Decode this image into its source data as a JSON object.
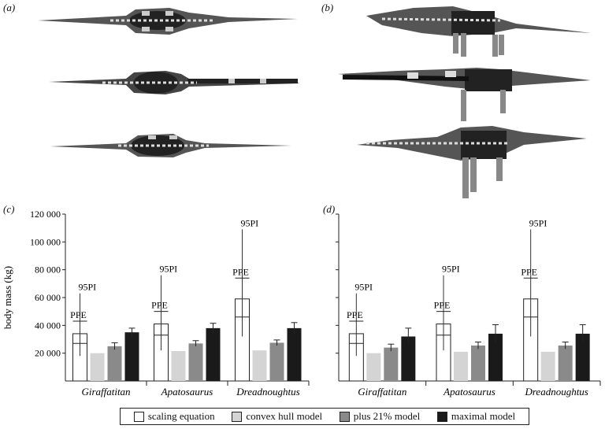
{
  "panels": {
    "a": "(a)",
    "b": "(b)",
    "c": "(c)",
    "d": "(d)"
  },
  "models": {
    "a": [
      "top-view-model-1",
      "top-view-model-2",
      "top-view-model-3"
    ],
    "b": [
      "side-view-model-1",
      "side-view-model-2",
      "side-view-model-3"
    ]
  },
  "annotations": {
    "ppe": "PPE",
    "pi": "95PI"
  },
  "legend": [
    {
      "label": "scaling equation",
      "color": "#ffffff"
    },
    {
      "label": "convex hull model",
      "color": "#d4d4d4"
    },
    {
      "label": "plus 21% model",
      "color": "#8a8a8a"
    },
    {
      "label": "maximal model",
      "color": "#1a1a1a"
    }
  ],
  "chart_data": [
    {
      "type": "bar",
      "panel": "(c)",
      "ylabel": "body mass (kg)",
      "ylim": [
        0,
        120000
      ],
      "yticks": [
        20000,
        40000,
        60000,
        80000,
        100000,
        120000
      ],
      "ytick_labels": [
        "20 000",
        "40 000",
        "60 000",
        "80 000",
        "100 000",
        "120 000"
      ],
      "categories": [
        "Giraffatitan",
        "Apatosaurus",
        "Dreadnoughtus"
      ],
      "series": [
        {
          "name": "scaling equation",
          "values": [
            34000,
            41000,
            59000
          ],
          "ppe": [
            [
              27000,
              43000
            ],
            [
              33000,
              50000
            ],
            [
              46000,
              74000
            ]
          ],
          "pi95": [
            [
              18000,
              63000
            ],
            [
              22000,
              76000
            ],
            [
              32000,
              109000
            ]
          ]
        },
        {
          "name": "convex hull model",
          "values": [
            20000,
            21500,
            22000
          ]
        },
        {
          "name": "plus 21% model",
          "values": [
            25000,
            27000,
            27500
          ],
          "err": [
            2500,
            2000,
            2000
          ]
        },
        {
          "name": "maximal model",
          "values": [
            35000,
            38000,
            38000
          ],
          "err": [
            3000,
            3500,
            4000
          ]
        }
      ]
    },
    {
      "type": "bar",
      "panel": "(d)",
      "ylim": [
        0,
        120000
      ],
      "categories": [
        "Giraffatitan",
        "Apatosaurus",
        "Dreadnoughtus"
      ],
      "series": [
        {
          "name": "scaling equation",
          "values": [
            34000,
            41000,
            59000
          ],
          "ppe": [
            [
              27000,
              43000
            ],
            [
              33000,
              50000
            ],
            [
              46000,
              74000
            ]
          ],
          "pi95": [
            [
              18000,
              63000
            ],
            [
              22000,
              76000
            ],
            [
              32000,
              109000
            ]
          ]
        },
        {
          "name": "convex hull model",
          "values": [
            20000,
            21000,
            21000
          ]
        },
        {
          "name": "plus 21% model",
          "values": [
            24000,
            25500,
            25500
          ],
          "err": [
            2500,
            2500,
            2500
          ]
        },
        {
          "name": "maximal model",
          "values": [
            32000,
            34000,
            34000
          ],
          "err": [
            6000,
            6500,
            6500
          ]
        }
      ]
    }
  ]
}
